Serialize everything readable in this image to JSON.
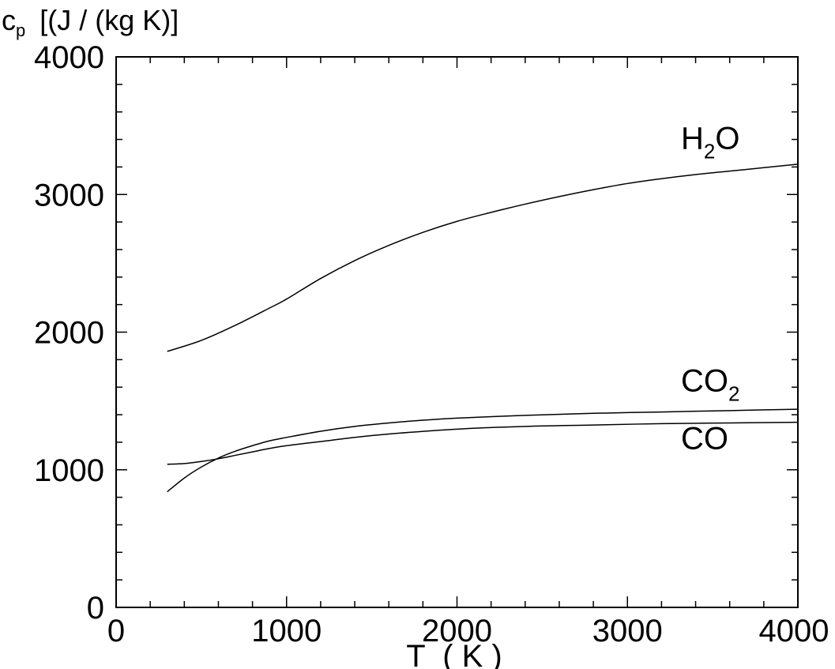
{
  "chart_data": {
    "type": "line",
    "xlabel": "T  ( K )",
    "ylabel": {
      "symbol": "c",
      "subscript": "p",
      "unit": "[(J / (kg K)]"
    },
    "xlim": [
      0,
      4000
    ],
    "ylim": [
      0,
      4000
    ],
    "x_ticks": [
      "0",
      "1000",
      "2000",
      "3000",
      "4000"
    ],
    "y_ticks": [
      "0",
      "1000",
      "2000",
      "3000",
      "4000"
    ],
    "x_major_step": 1000,
    "x_minor_step": 200,
    "y_major_step": 1000,
    "y_minor_step": 200,
    "grid": false,
    "legend": "none (series labelled inline at right)",
    "line_color": "#000000",
    "series": [
      {
        "name": "H2O",
        "label_main": "H",
        "label_sub": "2",
        "label_tail": "O",
        "x": [
          300,
          500,
          700,
          900,
          1000,
          1200,
          1400,
          1600,
          1800,
          2000,
          2200,
          2400,
          2600,
          2800,
          3000,
          3200,
          3400,
          3600,
          3800,
          4000
        ],
        "y": [
          1860,
          1940,
          2050,
          2175,
          2240,
          2390,
          2520,
          2630,
          2725,
          2805,
          2870,
          2930,
          2985,
          3035,
          3080,
          3115,
          3145,
          3170,
          3195,
          3220
        ]
      },
      {
        "name": "CO2",
        "label_main": "CO",
        "label_sub": "2",
        "label_tail": "",
        "x": [
          300,
          400,
          500,
          600,
          700,
          800,
          900,
          1000,
          1200,
          1400,
          1600,
          1800,
          2000,
          2400,
          2800,
          3200,
          3600,
          4000
        ],
        "y": [
          840,
          940,
          1020,
          1085,
          1135,
          1175,
          1210,
          1235,
          1280,
          1315,
          1340,
          1360,
          1375,
          1395,
          1410,
          1420,
          1430,
          1440
        ]
      },
      {
        "name": "CO",
        "label_main": "CO",
        "label_sub": "",
        "label_tail": "",
        "x": [
          300,
          400,
          500,
          600,
          700,
          800,
          900,
          1000,
          1200,
          1400,
          1600,
          2000,
          2400,
          2800,
          3200,
          3600,
          4000
        ],
        "y": [
          1040,
          1045,
          1060,
          1080,
          1105,
          1130,
          1155,
          1175,
          1205,
          1235,
          1260,
          1295,
          1315,
          1325,
          1335,
          1340,
          1345
        ]
      }
    ]
  }
}
